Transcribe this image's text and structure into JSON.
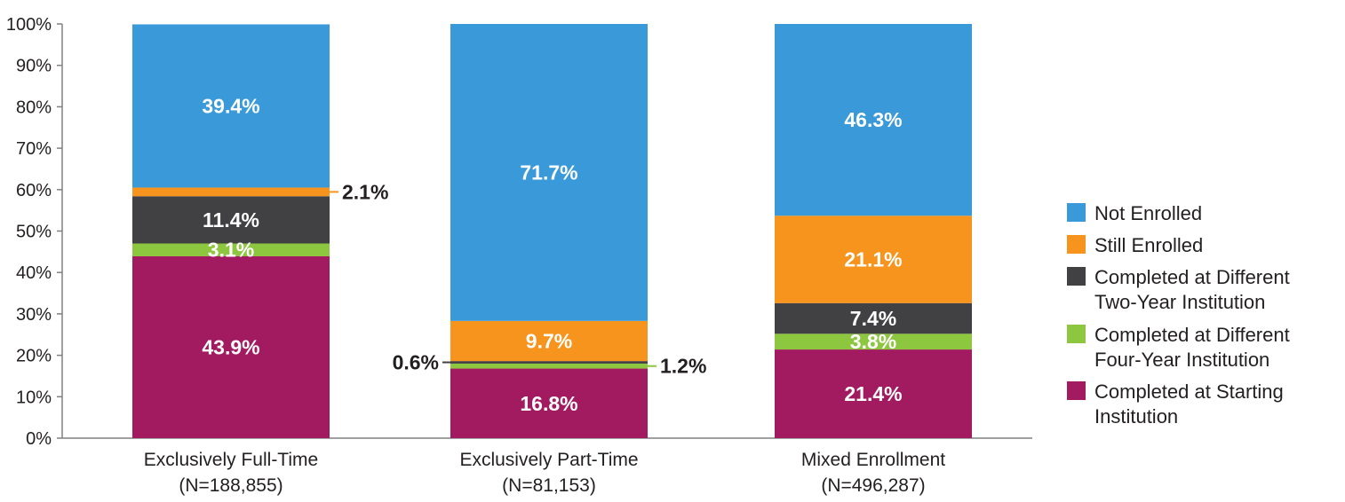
{
  "chart_data": {
    "type": "bar",
    "stacked": true,
    "categories": [
      "Exclusively Full-Time",
      "Exclusively Part-Time",
      "Mixed Enrollment"
    ],
    "category_notes": [
      "(N=188,855)",
      "(N=81,153)",
      "(N=496,287)"
    ],
    "ylim": [
      0,
      100
    ],
    "y_ticks": [
      "0%",
      "10%",
      "20%",
      "30%",
      "40%",
      "50%",
      "60%",
      "70%",
      "80%",
      "90%",
      "100%"
    ],
    "grid": false,
    "legend_position": "right",
    "series": [
      {
        "name": "Completed at Starting Institution",
        "color": "#a21a5f",
        "values": [
          43.9,
          16.8,
          21.4
        ],
        "labels": [
          "43.9%",
          "16.8%",
          "21.4%"
        ]
      },
      {
        "name": "Completed at Different Four-Year Institution",
        "color": "#8dc63f",
        "values": [
          3.1,
          1.2,
          3.8
        ],
        "labels": [
          "3.1%",
          "1.2%",
          "3.8%"
        ]
      },
      {
        "name": "Completed at Different Two-Year Institution",
        "color": "#414042",
        "values": [
          11.4,
          0.6,
          7.4
        ],
        "labels": [
          "11.4%",
          "0.6%",
          "7.4%"
        ]
      },
      {
        "name": "Still Enrolled",
        "color": "#f7941d",
        "values": [
          2.1,
          9.7,
          21.1
        ],
        "labels": [
          "2.1%",
          "9.7%",
          "21.1%"
        ]
      },
      {
        "name": "Not Enrolled",
        "color": "#3a9ad9",
        "values": [
          39.4,
          71.7,
          46.3
        ],
        "labels": [
          "39.4%",
          "71.7%",
          "46.3%"
        ]
      }
    ],
    "legend": [
      {
        "lines": [
          "Not Enrolled"
        ],
        "color": "#3a9ad9"
      },
      {
        "lines": [
          "Still Enrolled"
        ],
        "color": "#f7941d"
      },
      {
        "lines": [
          "Completed at Different",
          "Two-Year Institution"
        ],
        "color": "#414042"
      },
      {
        "lines": [
          "Completed at Different",
          "Four-Year Institution"
        ],
        "color": "#8dc63f"
      },
      {
        "lines": [
          "Completed at Starting",
          "Institution"
        ],
        "color": "#a21a5f"
      }
    ]
  }
}
